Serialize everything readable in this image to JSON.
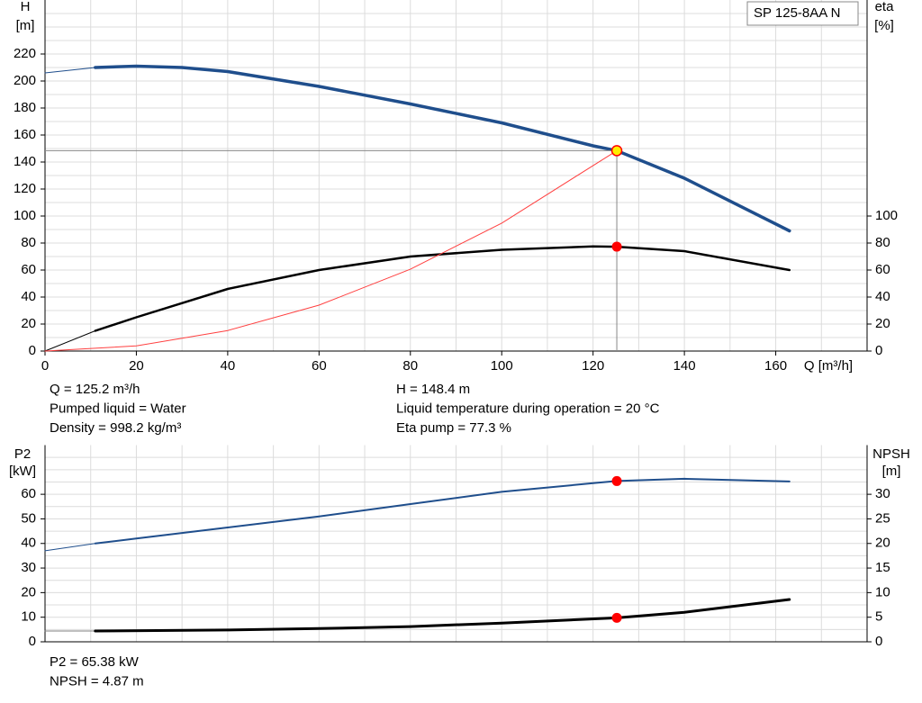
{
  "chart_data": [
    {
      "type": "line",
      "ylabel": "H",
      "yunit": "[m]",
      "y2label": "eta",
      "y2unit": "[%]",
      "xlabel": "Q [m³/h]",
      "legend": "SP 125-8AA N",
      "xlim": [
        0,
        180
      ],
      "xticks": [
        0,
        20,
        40,
        60,
        80,
        100,
        120,
        140,
        160
      ],
      "xgrid": [
        10,
        20,
        30,
        40,
        50,
        60,
        70,
        80,
        90,
        100,
        110,
        120,
        130,
        140,
        150,
        160,
        170
      ],
      "ylim": [
        0,
        260
      ],
      "yticks": [
        0,
        20,
        40,
        60,
        80,
        100,
        120,
        140,
        160,
        180,
        200,
        220
      ],
      "ygrid": [
        10,
        20,
        30,
        40,
        50,
        60,
        70,
        80,
        90,
        100,
        110,
        120,
        130,
        140,
        150,
        160,
        170,
        180,
        190,
        200,
        210,
        220,
        230,
        240,
        250
      ],
      "y2lim": [
        0,
        260
      ],
      "y2ticks": [
        0,
        20,
        40,
        60,
        80,
        100
      ],
      "series": [
        {
          "axis": "y",
          "color": "#1f4e8c",
          "width": 1,
          "x": [
            0,
            11
          ],
          "values": [
            206,
            210
          ]
        },
        {
          "axis": "y",
          "color": "#1f4e8c",
          "width": 3.5,
          "x": [
            11,
            20,
            30,
            40,
            60,
            80,
            100,
            120,
            125.2,
            140,
            163
          ],
          "values": [
            210,
            211,
            210,
            207,
            196,
            183,
            169,
            152,
            148.4,
            128,
            89
          ]
        },
        {
          "axis": "y2",
          "color": "#000000",
          "width": 1,
          "x": [
            0,
            11
          ],
          "values": [
            0,
            15
          ]
        },
        {
          "axis": "y2",
          "color": "#000000",
          "width": 2.5,
          "x": [
            11,
            20,
            40,
            60,
            80,
            100,
            120,
            125.2,
            140,
            163
          ],
          "values": [
            15,
            25,
            46,
            60,
            70,
            75,
            77.5,
            77.3,
            74,
            60
          ]
        },
        {
          "axis": "y",
          "color": "#ff4040",
          "width": 1,
          "x": [
            0,
            20,
            40,
            60,
            80,
            100,
            125.2
          ],
          "values": [
            0,
            3.8,
            15.2,
            34,
            60.6,
            94.7,
            148.4
          ]
        }
      ],
      "points": [
        {
          "axis": "y",
          "x": 125.2,
          "y": 148.4,
          "color": "#ffee00",
          "stroke": "#ff0000",
          "crosshair": true
        },
        {
          "axis": "y2",
          "x": 125.2,
          "y": 77.3,
          "color": "#ff0000"
        }
      ],
      "annotations": [
        [
          "Q = 125.2 m³/h",
          "Pumped liquid = Water",
          "Density = 998.2 kg/m³"
        ],
        [
          "H = 148.4 m",
          "Liquid temperature during operation = 20 °C",
          "Eta pump = 77.3 %"
        ]
      ]
    },
    {
      "type": "line",
      "ylabel": "P2",
      "yunit": "[kW]",
      "y2label": "NPSH",
      "y2unit": "[m]",
      "xlim": [
        0,
        180
      ],
      "xgrid": [
        10,
        20,
        30,
        40,
        50,
        60,
        70,
        80,
        90,
        100,
        110,
        120,
        130,
        140,
        150,
        160,
        170
      ],
      "ylim": [
        0,
        80
      ],
      "yticks": [
        0,
        10,
        20,
        30,
        40,
        50,
        60
      ],
      "ygrid": [
        5,
        10,
        15,
        20,
        25,
        30,
        35,
        40,
        45,
        50,
        55,
        60,
        65,
        70,
        75
      ],
      "y2lim": [
        0,
        40
      ],
      "y2ticks": [
        0,
        5,
        10,
        15,
        20,
        25,
        30
      ],
      "series": [
        {
          "axis": "y",
          "color": "#1f4e8c",
          "width": 1,
          "x": [
            0,
            11
          ],
          "values": [
            37,
            40
          ]
        },
        {
          "axis": "y",
          "color": "#1f4e8c",
          "width": 2,
          "x": [
            11,
            20,
            40,
            60,
            80,
            100,
            120,
            125.2,
            140,
            163
          ],
          "values": [
            40,
            42,
            46.5,
            51,
            56,
            61,
            64.5,
            65.38,
            66.3,
            65.2
          ]
        },
        {
          "axis": "y2",
          "color": "#808080",
          "width": 1,
          "x": [
            0,
            11
          ],
          "values": [
            2.2,
            2.2
          ]
        },
        {
          "axis": "y2",
          "color": "#000000",
          "width": 3,
          "x": [
            11,
            40,
            60,
            80,
            100,
            125.2,
            140,
            163
          ],
          "values": [
            2.2,
            2.4,
            2.7,
            3.1,
            3.8,
            4.87,
            6.0,
            8.6
          ]
        }
      ],
      "points": [
        {
          "axis": "y",
          "x": 125.2,
          "y": 65.38,
          "color": "#ff0000"
        },
        {
          "axis": "y2",
          "x": 125.2,
          "y": 4.87,
          "color": "#ff0000"
        }
      ],
      "annotations": [
        [
          "P2 = 65.38 kW",
          "NPSH = 4.87 m"
        ]
      ]
    }
  ]
}
